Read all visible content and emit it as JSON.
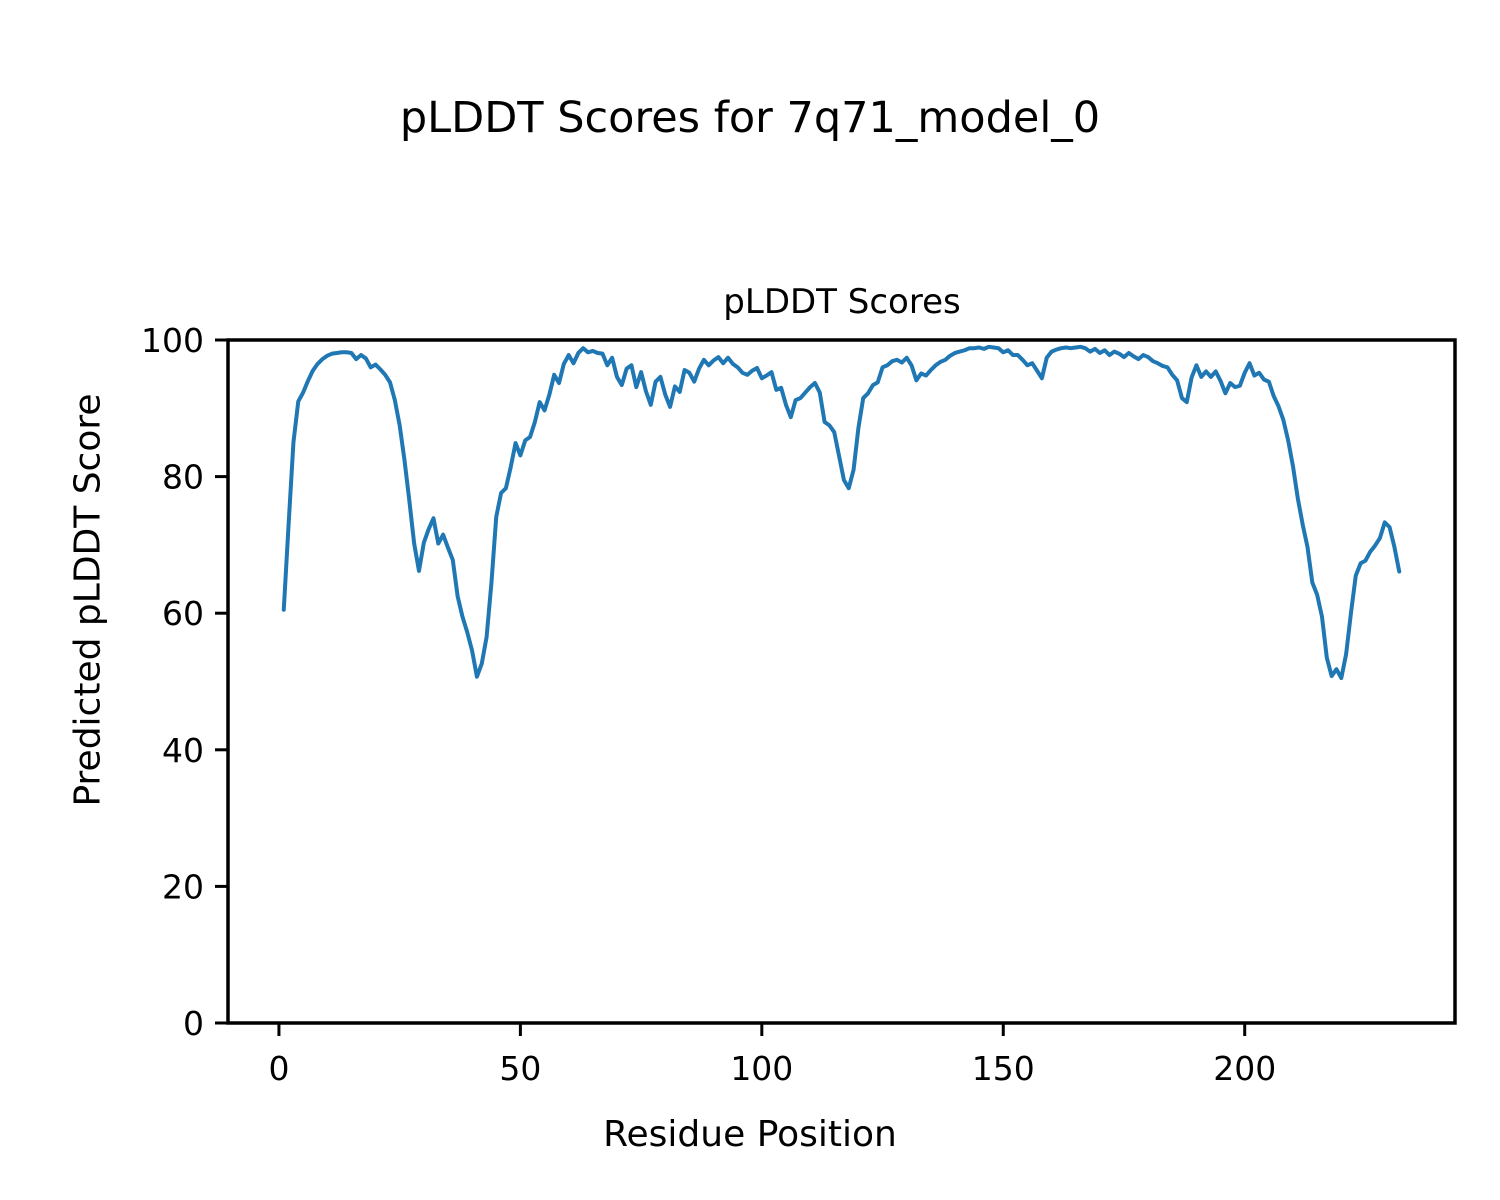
{
  "figure_title": "pLDDT Scores for 7q71_model_0",
  "chart_data": {
    "type": "line",
    "title": "pLDDT Scores",
    "xlabel": "Residue Position",
    "ylabel": "Predicted pLDDT Score",
    "xlim": [
      -10.55,
      243.55
    ],
    "ylim": [
      0,
      100
    ],
    "xticks": [
      0,
      50,
      100,
      150,
      200
    ],
    "yticks": [
      0,
      20,
      40,
      60,
      80,
      100
    ],
    "grid": false,
    "legend": "none",
    "line_color": "#1f77b4",
    "axis_color": "#000000",
    "series": [
      {
        "name": "pLDDT",
        "x_start": 1,
        "x_step": 1,
        "y": [
          60.5,
          73,
          85,
          91,
          92.3,
          94,
          95.5,
          96.5,
          97.2,
          97.7,
          98,
          98.1,
          98.2,
          98.2,
          98.1,
          97.2,
          97.8,
          97.3,
          96,
          96.4,
          95.7,
          94.9,
          93.8,
          91.2,
          87.5,
          82.4,
          76.5,
          70.2,
          66.2,
          70.3,
          72.3,
          73.9,
          70.2,
          71.5,
          69.6,
          67.8,
          62.5,
          59.5,
          57.2,
          54.5,
          50.7,
          52.6,
          56.5,
          64.4,
          74.1,
          77.6,
          78.3,
          81.4,
          84.9,
          83.1,
          85.3,
          85.8,
          88,
          90.9,
          89.7,
          92,
          94.9,
          93.7,
          96.5,
          97.8,
          96.6,
          98.1,
          98.8,
          98.2,
          98.4,
          98.1,
          98,
          96.3,
          97.4,
          94.6,
          93.4,
          95.8,
          96.3,
          93.1,
          95.3,
          92.5,
          90.5,
          93.9,
          94.6,
          92,
          90.2,
          93.2,
          92.4,
          95.6,
          95.2,
          93.9,
          95.8,
          97.1,
          96.3,
          97,
          97.5,
          96.6,
          97.4,
          96.5,
          96,
          95.2,
          94.9,
          95.5,
          95.9,
          94.4,
          94.8,
          95.3,
          92.7,
          93,
          90.5,
          88.7,
          91.2,
          91.5,
          92.3,
          93.1,
          93.7,
          92.3,
          88,
          87.5,
          86.5,
          83,
          79.5,
          78.3,
          81,
          87.1,
          91.5,
          92.2,
          93.4,
          93.8,
          96,
          96.3,
          96.9,
          97.1,
          96.7,
          97.4,
          96.3,
          94.1,
          95.1,
          94.8,
          95.6,
          96.3,
          96.8,
          97.1,
          97.7,
          98.1,
          98.3,
          98.5,
          98.8,
          98.8,
          98.9,
          98.7,
          99,
          98.9,
          98.8,
          98.2,
          98.5,
          97.8,
          97.8,
          97.1,
          96.3,
          96.6,
          95.5,
          94.4,
          97.4,
          98.3,
          98.6,
          98.8,
          98.9,
          98.8,
          98.9,
          99,
          98.8,
          98.3,
          98.7,
          98.1,
          98.5,
          97.8,
          98.3,
          98,
          97.5,
          98.1,
          97.6,
          97.2,
          97.8,
          97.5,
          96.9,
          96.6,
          96.2,
          96,
          94.9,
          94.1,
          91.5,
          90.9,
          94.5,
          96.3,
          94.6,
          95.4,
          94.6,
          95.4,
          94,
          92.2,
          93.7,
          93.1,
          93.3,
          95.2,
          96.6,
          94.8,
          95.2,
          94.2,
          93.9,
          91.8,
          90.3,
          88.3,
          85.3,
          81.5,
          76.8,
          73,
          69.7,
          64.5,
          62.7,
          59.5,
          53.5,
          50.8,
          51.8,
          50.5,
          54,
          60,
          65.5,
          67.3,
          67.7,
          69,
          69.9,
          71,
          73.3,
          72.6,
          69.7,
          66.1
        ]
      }
    ]
  }
}
